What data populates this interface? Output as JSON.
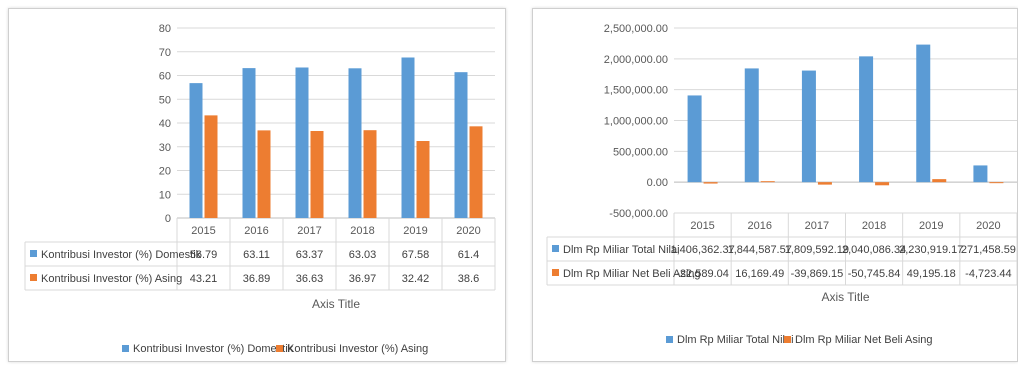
{
  "chart_data": [
    {
      "type": "bar",
      "categories": [
        "2015",
        "2016",
        "2017",
        "2018",
        "2019",
        "2020"
      ],
      "series": [
        {
          "name": "Kontribusi Investor (%) Domestik",
          "values": [
            56.79,
            63.11,
            63.37,
            63.03,
            67.58,
            61.4
          ],
          "labels": [
            "56.79",
            "63.11",
            "63.37",
            "63.03",
            "67.58",
            "61.4"
          ],
          "color": "#5B9BD5"
        },
        {
          "name": "Kontribusi Investor (%) Asing",
          "values": [
            43.21,
            36.89,
            36.63,
            36.97,
            32.42,
            38.6
          ],
          "labels": [
            "43.21",
            "36.89",
            "36.63",
            "36.97",
            "32.42",
            "38.6"
          ],
          "color": "#ED7D31"
        }
      ],
      "yticks": [
        "80",
        "70",
        "60",
        "50",
        "40",
        "30",
        "20",
        "10",
        "0"
      ],
      "ylim": [
        0,
        80
      ],
      "xlabel": "Axis Title",
      "ylabel": "",
      "grid": true,
      "data_table": true,
      "legend": "bottom"
    },
    {
      "type": "bar",
      "categories": [
        "2015",
        "2016",
        "2017",
        "2018",
        "2019",
        "2020"
      ],
      "series": [
        {
          "name": "Dlm Rp Miliar Total Nilai",
          "values": [
            1406362.37,
            1844587.57,
            1809592.19,
            2040086.34,
            2230919.17,
            271458.59
          ],
          "labels": [
            "1,406,362.37",
            "1,844,587.57",
            "1,809,592.19",
            "2,040,086.34",
            "2,230,919.17",
            "271,458.59"
          ],
          "color": "#5B9BD5"
        },
        {
          "name": "Dlm Rp Miliar Net Beli Asing",
          "values": [
            -22589.04,
            16169.49,
            -39869.15,
            -50745.84,
            49195.18,
            -4723.44
          ],
          "labels": [
            "-22,589.04",
            "16,169.49",
            "-39,869.15",
            "-50,745.84",
            "49,195.18",
            "-4,723.44"
          ],
          "color": "#ED7D31"
        }
      ],
      "yticks": [
        "2,500,000.00",
        "2,000,000.00",
        "1,500,000.00",
        "1,000,000.00",
        "500,000.00",
        "0.00",
        "-500,000.00"
      ],
      "ylim": [
        -500000,
        2500000
      ],
      "xlabel": "Axis Title",
      "ylabel": "",
      "grid": true,
      "data_table": true,
      "legend": "bottom"
    }
  ]
}
